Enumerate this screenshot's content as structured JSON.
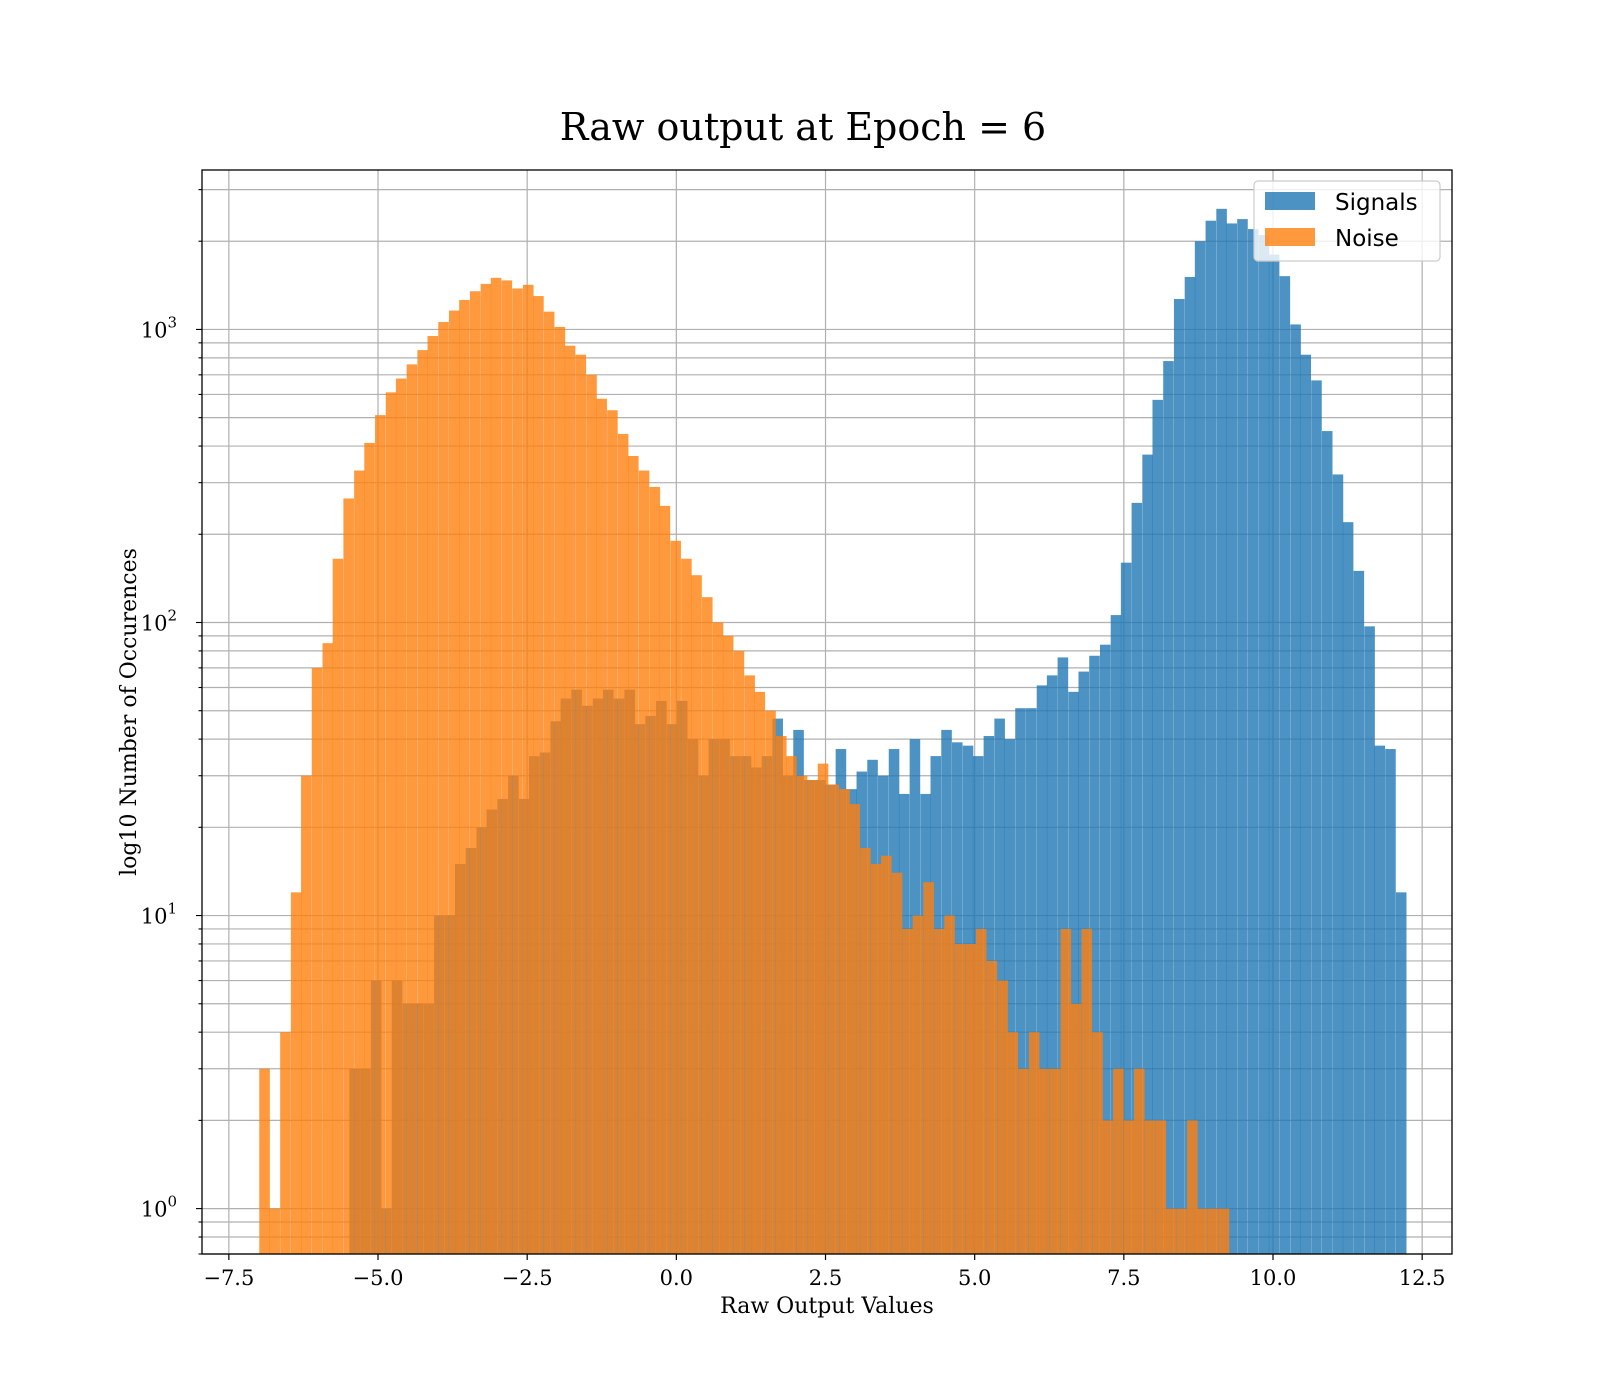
{
  "chart_data": {
    "type": "bar",
    "title": "Raw output at Epoch = 6",
    "xlabel": "Raw Output Values",
    "ylabel": "log10 Number of Occurences",
    "xlim": [
      -7.95,
      13.0
    ],
    "ylim": [
      0.7,
      3500
    ],
    "xscale": "linear",
    "yscale": "log",
    "grid": true,
    "legend_position": "upper right",
    "x_ticks": [
      -7.5,
      -5.0,
      -2.5,
      0.0,
      2.5,
      5.0,
      7.5,
      10.0,
      12.5
    ],
    "x_tick_labels": [
      "−7.5",
      "−5.0",
      "−2.5",
      "0.0",
      "2.5",
      "5.0",
      "7.5",
      "10.0",
      "12.5"
    ],
    "y_ticks": [
      1,
      10,
      100,
      1000
    ],
    "y_tick_bases": [
      "10",
      "10",
      "10",
      "10"
    ],
    "y_tick_exps": [
      "0",
      "1",
      "2",
      "3"
    ],
    "bin_width": 0.177,
    "series": [
      {
        "name": "Signals",
        "color": "#1f77b4",
        "bins": [
          [
            -5.48,
            3
          ],
          [
            -5.3,
            3
          ],
          [
            -5.12,
            6
          ],
          [
            -4.95,
            1
          ],
          [
            -4.77,
            6
          ],
          [
            -4.59,
            5
          ],
          [
            -4.42,
            5
          ],
          [
            -4.24,
            5
          ],
          [
            -4.06,
            10
          ],
          [
            -3.88,
            10
          ],
          [
            -3.71,
            15
          ],
          [
            -3.53,
            17
          ],
          [
            -3.35,
            20
          ],
          [
            -3.18,
            23
          ],
          [
            -3.0,
            25
          ],
          [
            -2.82,
            30
          ],
          [
            -2.64,
            25
          ],
          [
            -2.47,
            35
          ],
          [
            -2.29,
            36
          ],
          [
            -2.11,
            46
          ],
          [
            -1.94,
            55
          ],
          [
            -1.76,
            59
          ],
          [
            -1.58,
            52
          ],
          [
            -1.4,
            55
          ],
          [
            -1.23,
            59
          ],
          [
            -1.05,
            55
          ],
          [
            -0.87,
            59
          ],
          [
            -0.7,
            45
          ],
          [
            -0.52,
            48
          ],
          [
            -0.34,
            54
          ],
          [
            -0.16,
            45
          ],
          [
            0.01,
            54
          ],
          [
            0.19,
            40
          ],
          [
            0.37,
            30
          ],
          [
            0.54,
            40
          ],
          [
            0.72,
            40
          ],
          [
            0.9,
            35
          ],
          [
            1.08,
            35
          ],
          [
            1.25,
            32
          ],
          [
            1.43,
            35
          ],
          [
            1.61,
            47
          ],
          [
            1.78,
            30
          ],
          [
            1.96,
            43
          ],
          [
            2.14,
            29
          ],
          [
            2.32,
            29
          ],
          [
            2.49,
            28
          ],
          [
            2.67,
            37
          ],
          [
            2.85,
            27
          ],
          [
            3.02,
            31
          ],
          [
            3.2,
            34
          ],
          [
            3.38,
            30
          ],
          [
            3.56,
            37
          ],
          [
            3.73,
            26
          ],
          [
            3.91,
            40
          ],
          [
            4.09,
            26
          ],
          [
            4.26,
            35
          ],
          [
            4.44,
            43
          ],
          [
            4.62,
            39
          ],
          [
            4.8,
            38
          ],
          [
            4.97,
            35
          ],
          [
            5.15,
            41
          ],
          [
            5.33,
            47
          ],
          [
            5.5,
            40
          ],
          [
            5.68,
            51
          ],
          [
            5.86,
            51
          ],
          [
            6.04,
            61
          ],
          [
            6.21,
            66
          ],
          [
            6.39,
            76
          ],
          [
            6.57,
            58
          ],
          [
            6.74,
            68
          ],
          [
            6.92,
            77
          ],
          [
            7.1,
            84
          ],
          [
            7.28,
            106
          ],
          [
            7.45,
            160
          ],
          [
            7.63,
            256
          ],
          [
            7.81,
            374
          ],
          [
            7.98,
            575
          ],
          [
            8.16,
            780
          ],
          [
            8.34,
            1270
          ],
          [
            8.52,
            1510
          ],
          [
            8.69,
            2000
          ],
          [
            8.87,
            2350
          ],
          [
            9.05,
            2580
          ],
          [
            9.22,
            2300
          ],
          [
            9.4,
            2380
          ],
          [
            9.58,
            2200
          ],
          [
            9.76,
            2100
          ],
          [
            9.93,
            1800
          ],
          [
            10.11,
            1520
          ],
          [
            10.29,
            1040
          ],
          [
            10.46,
            820
          ],
          [
            10.64,
            670
          ],
          [
            10.82,
            450
          ],
          [
            11.0,
            320
          ],
          [
            11.17,
            220
          ],
          [
            11.35,
            150
          ],
          [
            11.53,
            97
          ],
          [
            11.7,
            38
          ],
          [
            11.88,
            37
          ],
          [
            12.06,
            12
          ]
        ]
      },
      {
        "name": "Noise",
        "color": "#ff7f0e",
        "bins": [
          [
            -6.99,
            3
          ],
          [
            -6.82,
            1
          ],
          [
            -6.64,
            4
          ],
          [
            -6.46,
            12
          ],
          [
            -6.29,
            30
          ],
          [
            -6.11,
            70
          ],
          [
            -5.93,
            85
          ],
          [
            -5.76,
            165
          ],
          [
            -5.58,
            265
          ],
          [
            -5.4,
            330
          ],
          [
            -5.23,
            410
          ],
          [
            -5.05,
            510
          ],
          [
            -4.87,
            610
          ],
          [
            -4.7,
            680
          ],
          [
            -4.52,
            760
          ],
          [
            -4.34,
            850
          ],
          [
            -4.17,
            950
          ],
          [
            -3.99,
            1060
          ],
          [
            -3.81,
            1160
          ],
          [
            -3.64,
            1260
          ],
          [
            -3.46,
            1350
          ],
          [
            -3.28,
            1430
          ],
          [
            -3.11,
            1500
          ],
          [
            -2.93,
            1470
          ],
          [
            -2.75,
            1380
          ],
          [
            -2.57,
            1420
          ],
          [
            -2.4,
            1300
          ],
          [
            -2.22,
            1150
          ],
          [
            -2.04,
            1020
          ],
          [
            -1.87,
            880
          ],
          [
            -1.69,
            820
          ],
          [
            -1.51,
            700
          ],
          [
            -1.34,
            580
          ],
          [
            -1.16,
            530
          ],
          [
            -0.98,
            440
          ],
          [
            -0.81,
            370
          ],
          [
            -0.63,
            330
          ],
          [
            -0.45,
            290
          ],
          [
            -0.28,
            250
          ],
          [
            -0.1,
            190
          ],
          [
            0.08,
            165
          ],
          [
            0.25,
            145
          ],
          [
            0.43,
            122
          ],
          [
            0.61,
            100
          ],
          [
            0.78,
            90
          ],
          [
            0.96,
            80
          ],
          [
            1.14,
            66
          ],
          [
            1.31,
            58
          ],
          [
            1.49,
            50
          ],
          [
            1.67,
            41
          ],
          [
            1.84,
            35
          ],
          [
            2.02,
            30
          ],
          [
            2.2,
            29
          ],
          [
            2.37,
            33
          ],
          [
            2.55,
            28
          ],
          [
            2.73,
            27
          ],
          [
            2.9,
            24
          ],
          [
            3.08,
            17
          ],
          [
            3.26,
            15
          ],
          [
            3.43,
            16
          ],
          [
            3.61,
            14
          ],
          [
            3.79,
            9
          ],
          [
            3.96,
            10
          ],
          [
            4.14,
            13
          ],
          [
            4.32,
            9
          ],
          [
            4.49,
            10
          ],
          [
            4.67,
            8
          ],
          [
            4.85,
            8
          ],
          [
            5.02,
            9
          ],
          [
            5.2,
            7
          ],
          [
            5.38,
            6
          ],
          [
            5.55,
            4
          ],
          [
            5.73,
            3
          ],
          [
            5.91,
            4
          ],
          [
            6.08,
            3
          ],
          [
            6.26,
            3
          ],
          [
            6.44,
            9
          ],
          [
            6.61,
            5
          ],
          [
            6.79,
            9
          ],
          [
            6.97,
            4
          ],
          [
            7.14,
            2
          ],
          [
            7.32,
            3
          ],
          [
            7.5,
            2
          ],
          [
            7.67,
            3
          ],
          [
            7.85,
            2
          ],
          [
            8.03,
            2
          ],
          [
            8.2,
            1
          ],
          [
            8.38,
            1
          ],
          [
            8.56,
            2
          ],
          [
            8.73,
            1
          ],
          [
            8.91,
            1
          ],
          [
            9.09,
            1
          ]
        ]
      }
    ]
  }
}
